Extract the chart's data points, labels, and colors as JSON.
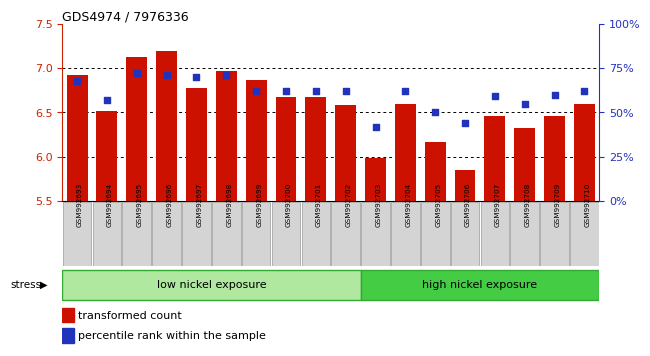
{
  "title": "GDS4974 / 7976336",
  "samples": [
    "GSM992693",
    "GSM992694",
    "GSM992695",
    "GSM992696",
    "GSM992697",
    "GSM992698",
    "GSM992699",
    "GSM992700",
    "GSM992701",
    "GSM992702",
    "GSM992703",
    "GSM992704",
    "GSM992705",
    "GSM992706",
    "GSM992707",
    "GSM992708",
    "GSM992709",
    "GSM992710"
  ],
  "bar_values": [
    6.92,
    6.51,
    7.13,
    7.19,
    6.78,
    6.97,
    6.87,
    6.67,
    6.67,
    6.58,
    5.98,
    6.6,
    6.17,
    5.85,
    6.46,
    6.32,
    6.46,
    6.6
  ],
  "pct_values": [
    68,
    57,
    72,
    71,
    70,
    71,
    62,
    62,
    62,
    62,
    42,
    62,
    50,
    44,
    59,
    55,
    60,
    62
  ],
  "bar_color": "#cc1100",
  "dot_color": "#2233bb",
  "ylim_left": [
    5.5,
    7.5
  ],
  "ylim_right": [
    0,
    100
  ],
  "yticks_left": [
    5.5,
    6.0,
    6.5,
    7.0,
    7.5
  ],
  "yticks_right": [
    0,
    25,
    50,
    75,
    100
  ],
  "ytick_labels_right": [
    "0%",
    "25%",
    "50%",
    "75%",
    "100%"
  ],
  "grid_values": [
    6.0,
    6.5,
    7.0
  ],
  "group1_label": "low nickel exposure",
  "group2_label": "high nickel exposure",
  "group1_count": 10,
  "stress_label": "stress",
  "legend_bar_label": "transformed count",
  "legend_dot_label": "percentile rank within the sample",
  "bg_xticklabels": "#d4d4d4",
  "bg_group1": "#b0e8a0",
  "bg_group2": "#44cc44",
  "left_axis_color": "#cc2200",
  "right_axis_color": "#2233bb",
  "title_color": "#000000"
}
